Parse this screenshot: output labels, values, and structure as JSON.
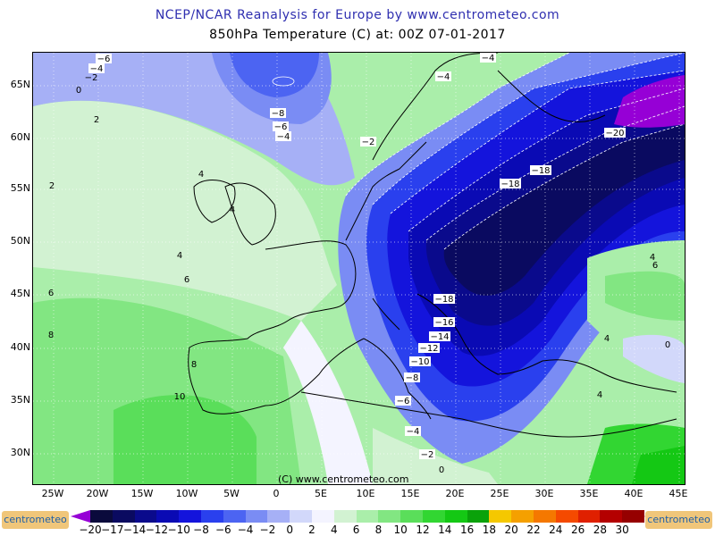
{
  "header": {
    "title": "NCEP/NCAR Reanalysis for Europe by www.centrometeo.com",
    "subtitle": "850hPa Temperature (C) at: 00Z 07-01-2017"
  },
  "map": {
    "lon_labels": [
      "25W",
      "20W",
      "15W",
      "10W",
      "5W",
      "0",
      "5E",
      "10E",
      "15E",
      "20E",
      "25E",
      "30E",
      "35E",
      "40E",
      "45E"
    ],
    "lat_labels": [
      "65N",
      "60N",
      "55N",
      "50N",
      "45N",
      "40N",
      "35N",
      "30N"
    ],
    "copyright": "(C) www.centrometeo.com",
    "isotherm_labels": [
      {
        "text": "-6",
        "kind": "box"
      },
      {
        "text": "-4",
        "kind": "box"
      },
      {
        "text": "-2",
        "kind": "plain"
      },
      {
        "text": "0",
        "kind": "plain"
      },
      {
        "text": "-8",
        "kind": "box"
      },
      {
        "text": "-6",
        "kind": "box"
      },
      {
        "text": "-4",
        "kind": "box"
      },
      {
        "text": "-2",
        "kind": "box"
      },
      {
        "text": "-4",
        "kind": "box"
      },
      {
        "text": "-4",
        "kind": "box"
      },
      {
        "text": "2",
        "kind": "plain"
      },
      {
        "text": "2",
        "kind": "plain"
      },
      {
        "text": "4",
        "kind": "plain"
      },
      {
        "text": "4",
        "kind": "plain"
      },
      {
        "text": "4",
        "kind": "plain"
      },
      {
        "text": "6",
        "kind": "plain"
      },
      {
        "text": "6",
        "kind": "plain"
      },
      {
        "text": "8",
        "kind": "plain"
      },
      {
        "text": "8",
        "kind": "plain"
      },
      {
        "text": "10",
        "kind": "plain"
      },
      {
        "text": "-20",
        "kind": "box"
      },
      {
        "text": "-18",
        "kind": "box"
      },
      {
        "text": "-18",
        "kind": "box"
      },
      {
        "text": "-18",
        "kind": "box"
      },
      {
        "text": "-16",
        "kind": "box"
      },
      {
        "text": "-14",
        "kind": "box"
      },
      {
        "text": "-12",
        "kind": "box"
      },
      {
        "text": "-10",
        "kind": "box"
      },
      {
        "text": "-8",
        "kind": "box"
      },
      {
        "text": "-6",
        "kind": "box"
      },
      {
        "text": "-4",
        "kind": "box"
      },
      {
        "text": "-2",
        "kind": "box"
      },
      {
        "text": "0",
        "kind": "plain"
      },
      {
        "text": "4",
        "kind": "plain"
      },
      {
        "text": "4",
        "kind": "plain"
      },
      {
        "text": "6",
        "kind": "plain"
      },
      {
        "text": "0",
        "kind": "plain"
      },
      {
        "text": "4",
        "kind": "plain"
      }
    ]
  },
  "legend": {
    "labels": [
      "-20",
      "-17",
      "-14",
      "-12",
      "-10",
      "-8",
      "-6",
      "-4",
      "-2",
      "0",
      "2",
      "4",
      "6",
      "8",
      "10",
      "12",
      "14",
      "16",
      "18",
      "20",
      "22",
      "24",
      "26",
      "28",
      "30"
    ],
    "colors": [
      "#9600d6",
      "#0a0a3c",
      "#0a0a60",
      "#0a0a8c",
      "#0a0ab4",
      "#1414dc",
      "#2a40ee",
      "#4c64f2",
      "#7a8cf4",
      "#a6b0f6",
      "#d2d8fa",
      "#f4f4ff",
      "#d2f2d2",
      "#aaeeaa",
      "#82e682",
      "#5ade5a",
      "#32d632",
      "#14c814",
      "#0aa20a",
      "#f5c800",
      "#f5a000",
      "#f57800",
      "#f54a00",
      "#e02000",
      "#b40000",
      "#960000"
    ],
    "logo_text": "centrometeo"
  }
}
